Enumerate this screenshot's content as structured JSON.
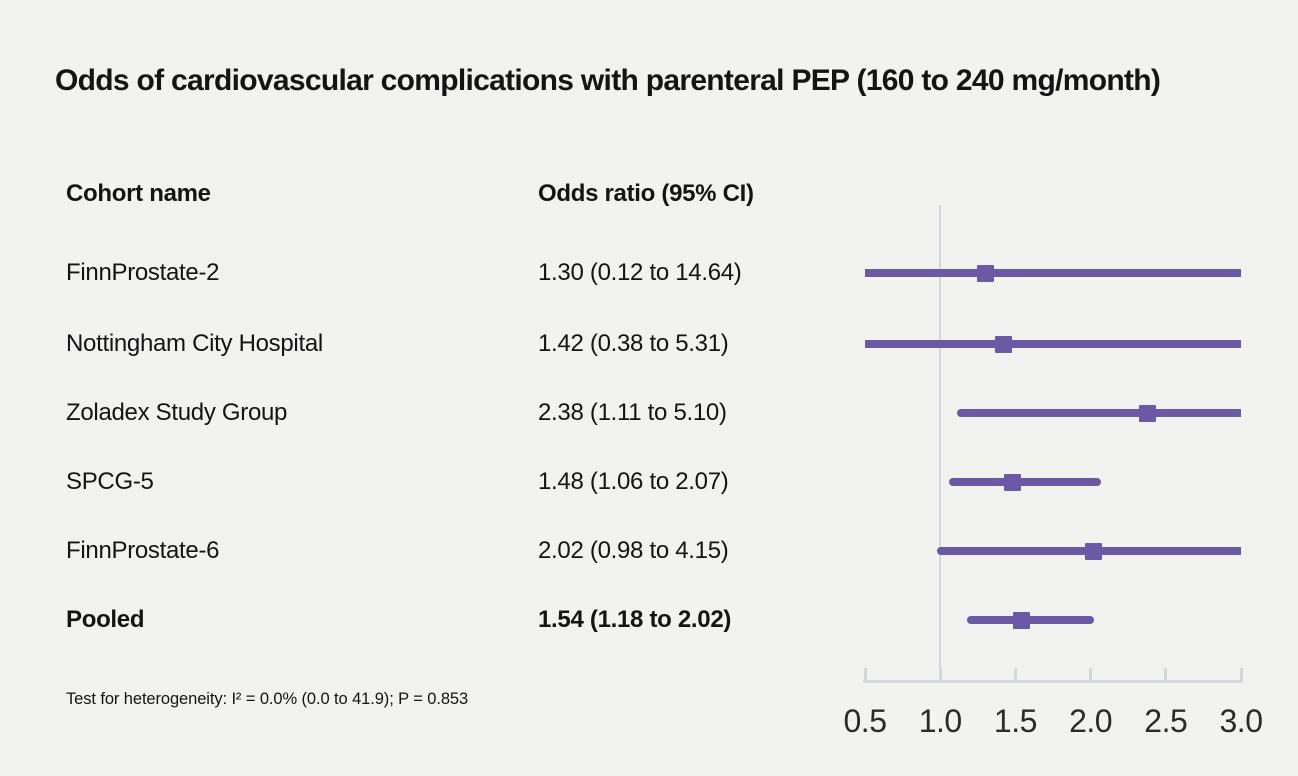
{
  "chart_data": {
    "type": "forest",
    "title": "Odds of cardiovascular complications with parenteral PEP (160 to 240 mg/month)",
    "column_headers": [
      "Cohort name",
      "Odds ratio (95% CI)"
    ],
    "x_axis": {
      "scale": "linear",
      "min": 0.5,
      "max": 3.0,
      "tick_values": [
        0.5,
        1.0,
        1.5,
        2.0,
        2.5,
        3.0
      ],
      "tick_labels": [
        "0.5",
        "1.0",
        "1.5",
        "2.0",
        "2.5",
        "3.0"
      ],
      "reference_line": 1.0
    },
    "rows": [
      {
        "cohort": "FinnProstate-2",
        "or": 1.3,
        "ci_low": 0.12,
        "ci_high": 14.64,
        "or_label": "1.30 (0.12 to 14.64)",
        "pooled": false
      },
      {
        "cohort": "Nottingham City Hospital",
        "or": 1.42,
        "ci_low": 0.38,
        "ci_high": 5.31,
        "or_label": "1.42 (0.38 to 5.31)",
        "pooled": false
      },
      {
        "cohort": "Zoladex Study Group",
        "or": 2.38,
        "ci_low": 1.11,
        "ci_high": 5.1,
        "or_label": "2.38 (1.11 to 5.10)",
        "pooled": false
      },
      {
        "cohort": "SPCG-5",
        "or": 1.48,
        "ci_low": 1.06,
        "ci_high": 2.07,
        "or_label": "1.48 (1.06 to 2.07)",
        "pooled": false
      },
      {
        "cohort": "FinnProstate-6",
        "or": 2.02,
        "ci_low": 0.98,
        "ci_high": 4.15,
        "or_label": "2.02 (0.98 to 4.15)",
        "pooled": false
      },
      {
        "cohort": "Pooled",
        "or": 1.54,
        "ci_low": 1.18,
        "ci_high": 2.02,
        "or_label": "1.54 (1.18 to 2.02)",
        "pooled": true
      }
    ],
    "footnote": "Test for heterogeneity: I² = 0.0% (0.0 to 41.9); P = 0.853",
    "legend": "none",
    "grid": false,
    "colors": {
      "marker": "#6a59a5",
      "ci_line": "#6a59a5",
      "axis": "#d4d8de",
      "background": "#f2f2f1",
      "text": "#141414"
    }
  }
}
